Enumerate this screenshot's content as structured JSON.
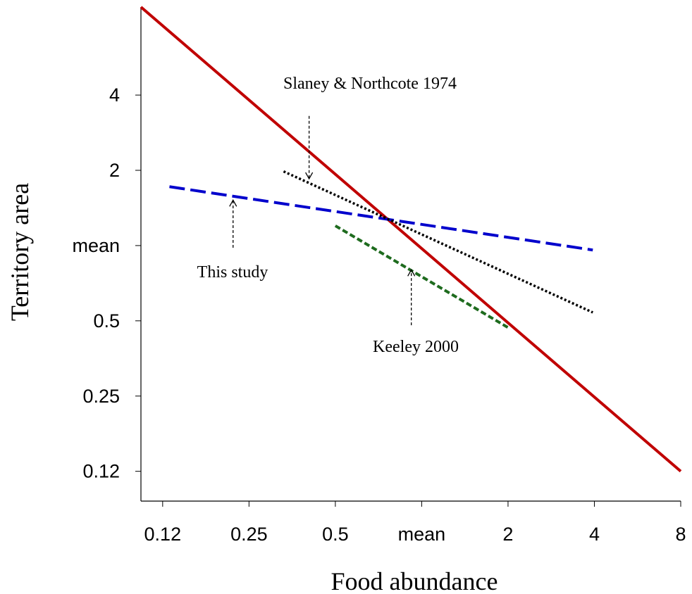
{
  "chart_data": {
    "type": "line",
    "xlabel": "Food abundance",
    "ylabel": "Territory area",
    "xscale": "log2",
    "yscale": "log2",
    "xlim": [
      0.105,
      8
    ],
    "ylim": [
      0.095,
      9.0
    ],
    "grid": false,
    "x_ticks": [
      {
        "value": 0.125,
        "label": "0.12"
      },
      {
        "value": 0.25,
        "label": "0.25"
      },
      {
        "value": 0.5,
        "label": "0.5"
      },
      {
        "value": 1,
        "label": "mean"
      },
      {
        "value": 2,
        "label": "2"
      },
      {
        "value": 4,
        "label": "4"
      },
      {
        "value": 8,
        "label": "8"
      }
    ],
    "y_ticks": [
      {
        "value": 0.125,
        "label": "0.12"
      },
      {
        "value": 0.25,
        "label": "0.25"
      },
      {
        "value": 0.5,
        "label": "0.5"
      },
      {
        "value": 1,
        "label": "mean"
      },
      {
        "value": 2,
        "label": "2"
      },
      {
        "value": 4,
        "label": "4"
      }
    ],
    "series": [
      {
        "key": "reference",
        "color": "#c00000",
        "style": "solid",
        "x": [
          0.105,
          8
        ],
        "y": [
          9.0,
          0.125
        ]
      },
      {
        "key": "this-study",
        "color": "#0000cc",
        "style": "dash",
        "x": [
          0.132,
          3.95
        ],
        "y": [
          1.72,
          0.96
        ]
      },
      {
        "key": "slaney",
        "color": "#000000",
        "style": "dot",
        "x": [
          0.33,
          3.95
        ],
        "y": [
          1.98,
          0.54
        ]
      },
      {
        "key": "keeley",
        "color": "#1e6b1e",
        "style": "dash",
        "x": [
          0.5,
          2.0
        ],
        "y": [
          1.2,
          0.47
        ]
      }
    ],
    "annotations": [
      {
        "text": "Slaney & Northcote 1974",
        "arrow_x": 0.405,
        "arrow_from_y": 3.3,
        "arrow_to_y": 1.85,
        "direction": "down"
      },
      {
        "text": "This study",
        "arrow_x": 0.22,
        "arrow_from_y": 0.98,
        "arrow_to_y": 1.52,
        "direction": "up"
      },
      {
        "text": "Keeley 2000",
        "arrow_x": 0.92,
        "arrow_from_y": 0.48,
        "arrow_to_y": 0.8,
        "direction": "up"
      }
    ]
  }
}
